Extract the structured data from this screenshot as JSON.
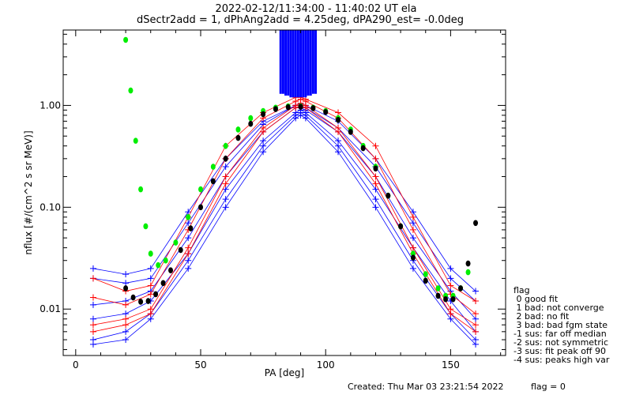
{
  "header": {
    "line1": "2022-02-12/11:34:00 - 11:40:02 UT ela",
    "line2": "dSectr2add = 1, dPhAng2add = 4.25deg, dPA290_est=  -0.0deg"
  },
  "footer": {
    "created": "Created: Thu Mar 03 23:21:54 2022",
    "flag": "flag = 0"
  },
  "legend": {
    "title": "flag",
    "items": [
      " 0 good fit",
      " 1 bad: not converge",
      " 2 bad: no fit",
      " 3 bad: bad fgm state",
      "-1 sus: far off median",
      "-2 sus: not symmetric",
      "-3 sus: fit peak off 90",
      "-4 sus: peaks high var"
    ]
  },
  "chart_data": {
    "type": "line",
    "xlabel": "PA [deg]",
    "ylabel": "nflux [#/(cm^2 s sr MeV)]",
    "xlim": [
      -5,
      172
    ],
    "ylim": [
      0.0035,
      5.5
    ],
    "yscale": "log",
    "xticks": [
      0,
      50,
      100,
      150
    ],
    "yticks": [
      {
        "v": 0.01,
        "label": "0.01"
      },
      {
        "v": 0.1,
        "label": "0.10"
      },
      {
        "v": 1,
        "label": "1.00"
      }
    ],
    "colors": {
      "blue": "#0000ff",
      "red": "#ff0000",
      "green": "#00ee00",
      "black": "#000000"
    },
    "series": [
      {
        "color": "blue",
        "marker": "plus",
        "x": [
          7,
          20,
          30,
          45,
          60,
          75,
          88,
          90,
          92,
          105,
          120,
          135,
          150,
          160
        ],
        "y": [
          0.011,
          0.012,
          0.015,
          0.05,
          0.2,
          0.55,
          0.95,
          0.95,
          0.9,
          0.55,
          0.2,
          0.05,
          0.015,
          0.008
        ]
      },
      {
        "color": "blue",
        "marker": "plus",
        "x": [
          7,
          20,
          30,
          45,
          60,
          75,
          88,
          90,
          92,
          105,
          120,
          135,
          150,
          160
        ],
        "y": [
          0.008,
          0.009,
          0.012,
          0.035,
          0.15,
          0.45,
          0.85,
          0.9,
          0.85,
          0.45,
          0.15,
          0.04,
          0.012,
          0.006
        ]
      },
      {
        "color": "blue",
        "marker": "plus",
        "x": [
          7,
          20,
          30,
          45,
          60,
          75,
          88,
          90,
          92,
          105,
          120,
          135,
          150,
          160
        ],
        "y": [
          0.02,
          0.018,
          0.02,
          0.07,
          0.25,
          0.65,
          1.0,
          1.0,
          0.95,
          0.6,
          0.25,
          0.07,
          0.02,
          0.012
        ]
      },
      {
        "color": "blue",
        "marker": "plus",
        "x": [
          7,
          20,
          30,
          45,
          60,
          75,
          88,
          90,
          92,
          105,
          120,
          135,
          150,
          160
        ],
        "y": [
          0.005,
          0.006,
          0.009,
          0.03,
          0.12,
          0.4,
          0.8,
          0.85,
          0.8,
          0.4,
          0.12,
          0.03,
          0.009,
          0.005
        ]
      },
      {
        "color": "blue",
        "marker": "plus",
        "x": [
          7,
          20,
          30,
          45,
          60,
          75,
          88,
          90,
          92,
          105,
          120,
          135,
          150,
          160
        ],
        "y": [
          0.025,
          0.022,
          0.025,
          0.09,
          0.3,
          0.7,
          1.0,
          1.05,
          1.0,
          0.7,
          0.3,
          0.09,
          0.025,
          0.015
        ]
      },
      {
        "color": "blue",
        "marker": "plus",
        "x": [
          7,
          20,
          30,
          45,
          60,
          75,
          88,
          90,
          92,
          105,
          120,
          135,
          150,
          160
        ],
        "y": [
          0.0045,
          0.005,
          0.008,
          0.025,
          0.1,
          0.35,
          0.75,
          0.8,
          0.75,
          0.35,
          0.1,
          0.025,
          0.008,
          0.0045
        ]
      },
      {
        "color": "red",
        "marker": "plus",
        "x": [
          7,
          20,
          30,
          45,
          60,
          75,
          88,
          90,
          92,
          105,
          120,
          135,
          150,
          160
        ],
        "y": [
          0.013,
          0.011,
          0.014,
          0.06,
          0.3,
          0.75,
          1.1,
          1.15,
          1.1,
          0.75,
          0.3,
          0.06,
          0.014,
          0.009
        ]
      },
      {
        "color": "red",
        "marker": "plus",
        "x": [
          7,
          20,
          30,
          45,
          60,
          75,
          88,
          90,
          92,
          105,
          120,
          135,
          150,
          160
        ],
        "y": [
          0.007,
          0.008,
          0.01,
          0.04,
          0.2,
          0.6,
          1.0,
          1.05,
          1.0,
          0.6,
          0.2,
          0.04,
          0.01,
          0.007
        ]
      },
      {
        "color": "red",
        "marker": "plus",
        "x": [
          7,
          20,
          30,
          45,
          60,
          75,
          88,
          90,
          92,
          105,
          120,
          135,
          150,
          160
        ],
        "y": [
          0.02,
          0.015,
          0.017,
          0.08,
          0.4,
          0.85,
          1.2,
          1.2,
          1.15,
          0.85,
          0.4,
          0.08,
          0.017,
          0.012
        ]
      },
      {
        "color": "red",
        "marker": "plus",
        "x": [
          7,
          20,
          30,
          45,
          60,
          75,
          88,
          90,
          92,
          105,
          120,
          135,
          150,
          160
        ],
        "y": [
          0.006,
          0.007,
          0.009,
          0.035,
          0.17,
          0.55,
          0.95,
          1.0,
          0.95,
          0.55,
          0.17,
          0.035,
          0.009,
          0.006
        ]
      },
      {
        "color": "green",
        "marker": "dot",
        "name": "fit",
        "x": [
          20,
          22,
          24,
          26,
          28,
          30,
          33,
          36,
          40,
          45,
          50,
          55,
          60,
          65,
          70,
          75,
          80,
          85,
          90,
          95,
          100,
          105,
          110,
          115,
          120,
          125,
          130,
          135,
          140,
          145,
          148,
          151,
          154,
          157
        ],
        "y": [
          4.4,
          1.4,
          0.45,
          0.15,
          0.065,
          0.035,
          0.027,
          0.03,
          0.045,
          0.08,
          0.15,
          0.25,
          0.4,
          0.58,
          0.75,
          0.88,
          0.95,
          0.98,
          0.98,
          0.95,
          0.88,
          0.75,
          0.58,
          0.4,
          0.25,
          0.13,
          0.065,
          0.035,
          0.022,
          0.016,
          0.0135,
          0.0135,
          0.016,
          0.023
        ]
      },
      {
        "color": "black",
        "marker": "dot",
        "name": "model",
        "x": [
          20,
          23,
          26,
          29,
          32,
          35,
          38,
          42,
          46,
          50,
          55,
          60,
          65,
          70,
          75,
          80,
          85,
          90,
          95,
          100,
          105,
          110,
          115,
          120,
          125,
          130,
          135,
          140,
          145,
          148,
          151,
          154,
          157,
          160
        ],
        "y": [
          0.016,
          0.013,
          0.0118,
          0.012,
          0.014,
          0.018,
          0.024,
          0.038,
          0.062,
          0.1,
          0.18,
          0.3,
          0.48,
          0.66,
          0.82,
          0.92,
          0.96,
          0.97,
          0.94,
          0.86,
          0.72,
          0.55,
          0.38,
          0.24,
          0.13,
          0.065,
          0.032,
          0.019,
          0.0135,
          0.0125,
          0.0125,
          0.016,
          0.028,
          0.07
        ]
      },
      {
        "color": "blue",
        "marker": "bars",
        "name": "error-bars",
        "x": [
          82,
          83,
          84,
          85,
          86,
          87,
          88,
          89,
          90,
          91,
          92,
          93,
          94,
          95,
          96
        ],
        "y": [
          1.3,
          1.3,
          1.25,
          1.25,
          1.2,
          1.2,
          1.2,
          1.2,
          1.2,
          1.2,
          1.2,
          1.25,
          1.25,
          1.3,
          1.3
        ]
      }
    ]
  }
}
